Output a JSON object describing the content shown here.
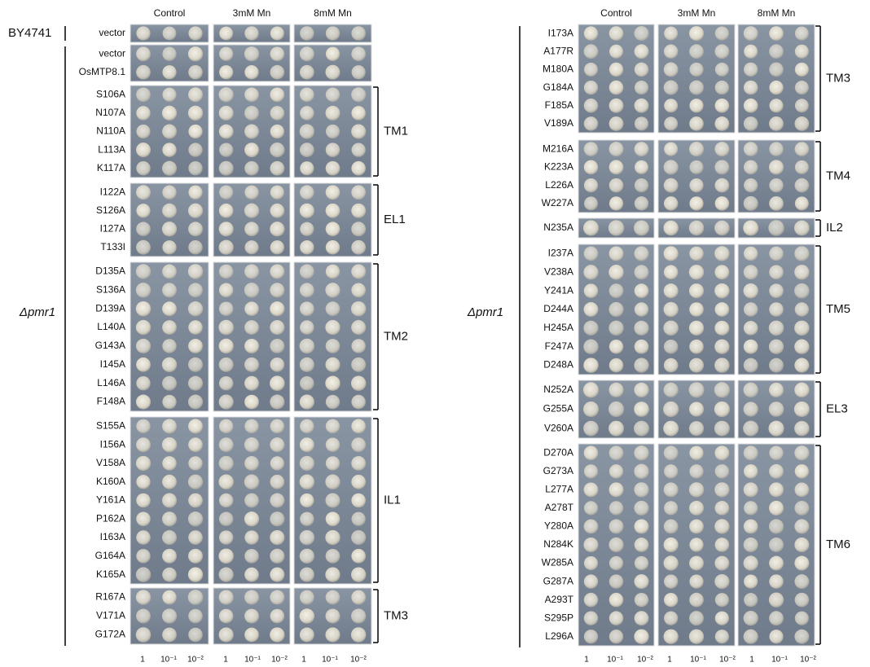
{
  "panels": [
    {
      "column_headers": [
        "Control",
        "3mM Mn",
        "8mM Mn"
      ],
      "dilutions": [
        "1",
        "10⁻¹",
        "10⁻²"
      ],
      "strain_label": "BY4741",
      "mutant_label": "Δpmr1",
      "blocks": [
        {
          "rows": [
            "vector"
          ]
        },
        {
          "rows": [
            "vector",
            "OsMTP8.1"
          ]
        },
        {
          "rows": [
            "S106A",
            "N107A",
            "N110A",
            "L113A",
            "K117A"
          ],
          "group": "TM1"
        },
        {
          "rows": [
            "I122A",
            "S126A",
            "I127A",
            "T133I"
          ],
          "group": "EL1"
        },
        {
          "rows": [
            "D135A",
            "S136A",
            "D139A",
            "L140A",
            "G143A",
            "I145A",
            "L146A",
            "F148A"
          ],
          "group": "TM2"
        },
        {
          "rows": [
            "S155A",
            "I156A",
            "V158A",
            "K160A",
            "Y161A",
            "P162A",
            "I163A",
            "G164A",
            "K165A"
          ],
          "group": "IL1"
        },
        {
          "rows": [
            "R167A",
            "V171A",
            "G172A"
          ],
          "group": "TM3"
        }
      ]
    },
    {
      "column_headers": [
        "Control",
        "3mM Mn",
        "8mM Mn"
      ],
      "dilutions": [
        "1",
        "10⁻¹",
        "10⁻²"
      ],
      "mutant_label": "Δpmr1",
      "blocks": [
        {
          "rows": [
            "I173A",
            "A177R",
            "M180A",
            "G184A",
            "F185A",
            "V189A"
          ],
          "group": "TM3"
        },
        {
          "rows": [
            "M216A",
            "K223A",
            "L226A",
            "W227A"
          ],
          "group": "TM4"
        },
        {
          "rows": [
            "N235A"
          ],
          "group": "IL2"
        },
        {
          "rows": [
            "I237A",
            "V238A",
            "Y241A",
            "D244A",
            "H245A",
            "F247A",
            "D248A"
          ],
          "group": "TM5"
        },
        {
          "rows": [
            "N252A",
            "G255A",
            "V260A"
          ],
          "group": "EL3"
        },
        {
          "rows": [
            "D270A",
            "G273A",
            "L277A",
            "A278T",
            "Y280A",
            "N284K",
            "W285A",
            "G287A",
            "A293T",
            "S295P",
            "L296A"
          ],
          "group": "TM6"
        }
      ]
    }
  ]
}
